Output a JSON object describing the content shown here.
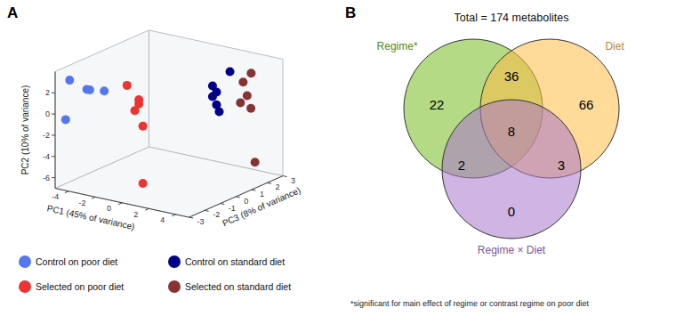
{
  "chart_data": [
    {
      "type": "scatter3d",
      "panel": "A",
      "x_label": "PC1 (45% of variance)",
      "y_label": "PC2 (10% of variance)",
      "z_label": "PC3 (8% of variance)",
      "xlim": [
        -5,
        5
      ],
      "ylim": [
        -7,
        4
      ],
      "zlim": [
        -3,
        3
      ],
      "xticks": [
        -4,
        -2,
        0,
        2,
        4
      ],
      "yticks": [
        -6,
        -4,
        -2,
        0,
        2
      ],
      "zticks": [
        -3,
        -2,
        -1,
        0,
        1,
        2,
        3
      ],
      "grid": false,
      "legend": "bottom",
      "series": [
        {
          "name": "Control on poor diet",
          "color": "#5577EE",
          "x": [
            -4.5,
            -3.0,
            -2.5,
            -3.8,
            -4.8
          ],
          "y": [
            3.0,
            2.5,
            2.2,
            2.0,
            -0.8
          ],
          "z": [
            -2.5,
            -2.5,
            -2.0,
            -2.0,
            -2.5
          ]
        },
        {
          "name": "Selected on poor diet",
          "color": "#EE3333",
          "x": [
            -0.8,
            -0.5,
            -0.5,
            -0.8,
            -0.2,
            -0.2
          ],
          "y": [
            3.2,
            1.6,
            1.2,
            0.5,
            -0.8,
            -6.2
          ],
          "z": [
            -2.0,
            -1.5,
            -1.5,
            -1.5,
            -1.5,
            -1.5
          ]
        },
        {
          "name": "Control on standard diet",
          "color": "#000088",
          "x": [
            2.8,
            1.5,
            1.8,
            1.5,
            1.8,
            2.0
          ],
          "y": [
            3.2,
            1.5,
            1.0,
            0.5,
            -0.2,
            -0.8
          ],
          "z": [
            1.5,
            1.5,
            1.5,
            1.5,
            1.5,
            1.5
          ]
        },
        {
          "name": "Selected on standard diet",
          "color": "#883333",
          "x": [
            3.8,
            3.2,
            3.5,
            3.0,
            3.2,
            3.5
          ],
          "y": [
            3.0,
            2.0,
            0.8,
            0.0,
            -0.8,
            -5.8
          ],
          "z": [
            2.0,
            2.0,
            2.0,
            2.0,
            2.5,
            2.5
          ]
        }
      ]
    },
    {
      "type": "venn",
      "panel": "B",
      "title": "Total = 174 metabolites",
      "footnote": "*significant for main effect of regime or contrast regime on poor diet",
      "sets": [
        {
          "name": "Regime*",
          "color": "#77BB22"
        },
        {
          "name": "Diet",
          "color": "#FFBB44"
        },
        {
          "name": "Regime × Diet",
          "color": "#AA77CC"
        }
      ],
      "regions": [
        {
          "sets": [
            "Regime*"
          ],
          "value": 22
        },
        {
          "sets": [
            "Diet"
          ],
          "value": 66
        },
        {
          "sets": [
            "Regime*",
            "Diet"
          ],
          "value": 36
        },
        {
          "sets": [
            "Regime*",
            "Diet",
            "Regime × Diet"
          ],
          "value": 8
        },
        {
          "sets": [
            "Regime*",
            "Regime × Diet"
          ],
          "value": 2
        },
        {
          "sets": [
            "Diet",
            "Regime × Diet"
          ],
          "value": 3
        },
        {
          "sets": [
            "Regime × Diet"
          ],
          "value": 0
        }
      ]
    }
  ]
}
